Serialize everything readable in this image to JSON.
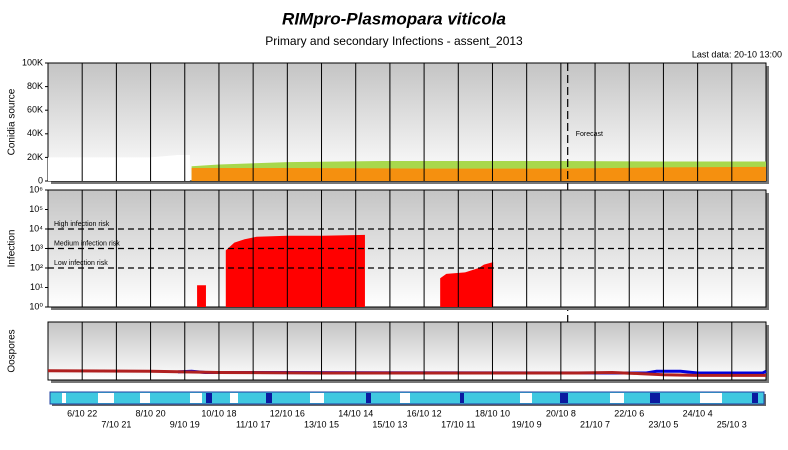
{
  "title": "RIMpro-Plasmopara viticola",
  "subtitle": "Primary and secondary Infections - assent_2013",
  "last_data": "Last data: 20-10 13:00",
  "chart_data": [
    {
      "type": "area",
      "ylabel": "Conidia source",
      "xlim": [
        5,
        26
      ],
      "ylim": [
        0,
        100000
      ],
      "yticks": [
        0,
        {
          "value": 20000,
          "label": "20K"
        },
        {
          "value": 40000,
          "label": "40K"
        },
        {
          "value": 60000,
          "label": "60K"
        },
        {
          "value": 80000,
          "label": "80K"
        },
        {
          "value": 100000,
          "label": "100K"
        }
      ],
      "annotations": [
        {
          "text": "Forecast",
          "x": 20.2
        }
      ],
      "series": [
        {
          "color": "#ffffff",
          "x": [
            5,
            6,
            7,
            8,
            8.8,
            9.15
          ],
          "values": [
            20000,
            20000,
            20000,
            20000,
            22000,
            22000
          ]
        },
        {
          "color": "#a8d84c",
          "x": [
            9.2,
            10,
            12,
            15,
            20,
            23,
            26
          ],
          "values": [
            12500,
            14000,
            16000,
            17000,
            17000,
            16500,
            16500
          ]
        },
        {
          "color": "#f5900f",
          "x": [
            9.2,
            10,
            12,
            16,
            20,
            23,
            26
          ],
          "values": [
            11000,
            11000,
            11000,
            10500,
            10500,
            11500,
            12000
          ]
        }
      ]
    },
    {
      "type": "area",
      "ylabel": "Infection",
      "log_scale": true,
      "xlim": [
        5,
        26
      ],
      "ylim": [
        1,
        1000000
      ],
      "yticks": [
        {
          "value": 1,
          "label": "10⁰"
        },
        {
          "value": 10,
          "label": "10¹"
        },
        {
          "value": 100,
          "label": "10²"
        },
        {
          "value": 1000,
          "label": "10³"
        },
        {
          "value": 10000,
          "label": "10⁴"
        },
        {
          "value": 100000,
          "label": "10⁵"
        },
        {
          "value": 1000000,
          "label": "10⁶"
        }
      ],
      "thresholds": [
        {
          "value": 10000,
          "label": "High infection risk"
        },
        {
          "value": 1000,
          "label": "Medium infection risk"
        },
        {
          "value": 100,
          "label": "Low infection risk"
        }
      ],
      "series": [
        {
          "color": "#ff0000",
          "x": [
            9.36,
            9.62,
            9.9,
            10.2,
            10.45,
            10.75,
            11.1,
            12,
            13,
            14.27,
            15,
            16.47,
            16.65,
            17.2,
            17.6,
            17.75,
            18.02
          ],
          "values": [
            13,
            13,
            null,
            800,
            2000,
            3000,
            4000,
            4500,
            4500,
            5000,
            null,
            30,
            50,
            60,
            100,
            150,
            200
          ]
        }
      ]
    },
    {
      "type": "line",
      "ylabel": "Oospores",
      "xlim": [
        5,
        26
      ],
      "ylim": [
        0,
        100
      ],
      "xticks": [
        {
          "value": 6,
          "label": "6/10 22"
        },
        {
          "value": 7,
          "label": "7/10 21"
        },
        {
          "value": 8,
          "label": "8/10 20"
        },
        {
          "value": 9,
          "label": "9/10 19"
        },
        {
          "value": 10,
          "label": "10/10 18"
        },
        {
          "value": 11,
          "label": "11/10 17"
        },
        {
          "value": 12,
          "label": "12/10 16"
        },
        {
          "value": 13,
          "label": "13/10 15"
        },
        {
          "value": 14,
          "label": "14/10 14"
        },
        {
          "value": 15,
          "label": "15/10 13"
        },
        {
          "value": 16,
          "label": "16/10 12"
        },
        {
          "value": 17,
          "label": "17/10 11"
        },
        {
          "value": 18,
          "label": "18/10 10"
        },
        {
          "value": 19,
          "label": "19/10 9"
        },
        {
          "value": 20,
          "label": "20/10 8"
        },
        {
          "value": 21,
          "label": "21/10 7"
        },
        {
          "value": 22,
          "label": "22/10 6"
        },
        {
          "value": 23,
          "label": "23/10 5"
        },
        {
          "value": 24,
          "label": "24/10 4"
        },
        {
          "value": 25,
          "label": "25/10 3"
        }
      ],
      "series": [
        {
          "color": "#0000dd",
          "x": [
            8.8,
            9.2,
            9.6,
            22.5,
            22.8,
            23.5,
            24,
            25.9,
            26
          ],
          "values": [
            14,
            15,
            13,
            12,
            15,
            15,
            12,
            12,
            15
          ]
        },
        {
          "color": "#b02020",
          "x": [
            5,
            8,
            10,
            13,
            16,
            19,
            20.5,
            21.5,
            22.3,
            23,
            24,
            26
          ],
          "values": [
            16,
            15,
            13,
            12,
            12,
            12,
            12,
            13,
            11,
            9,
            8,
            8
          ]
        }
      ]
    }
  ]
}
